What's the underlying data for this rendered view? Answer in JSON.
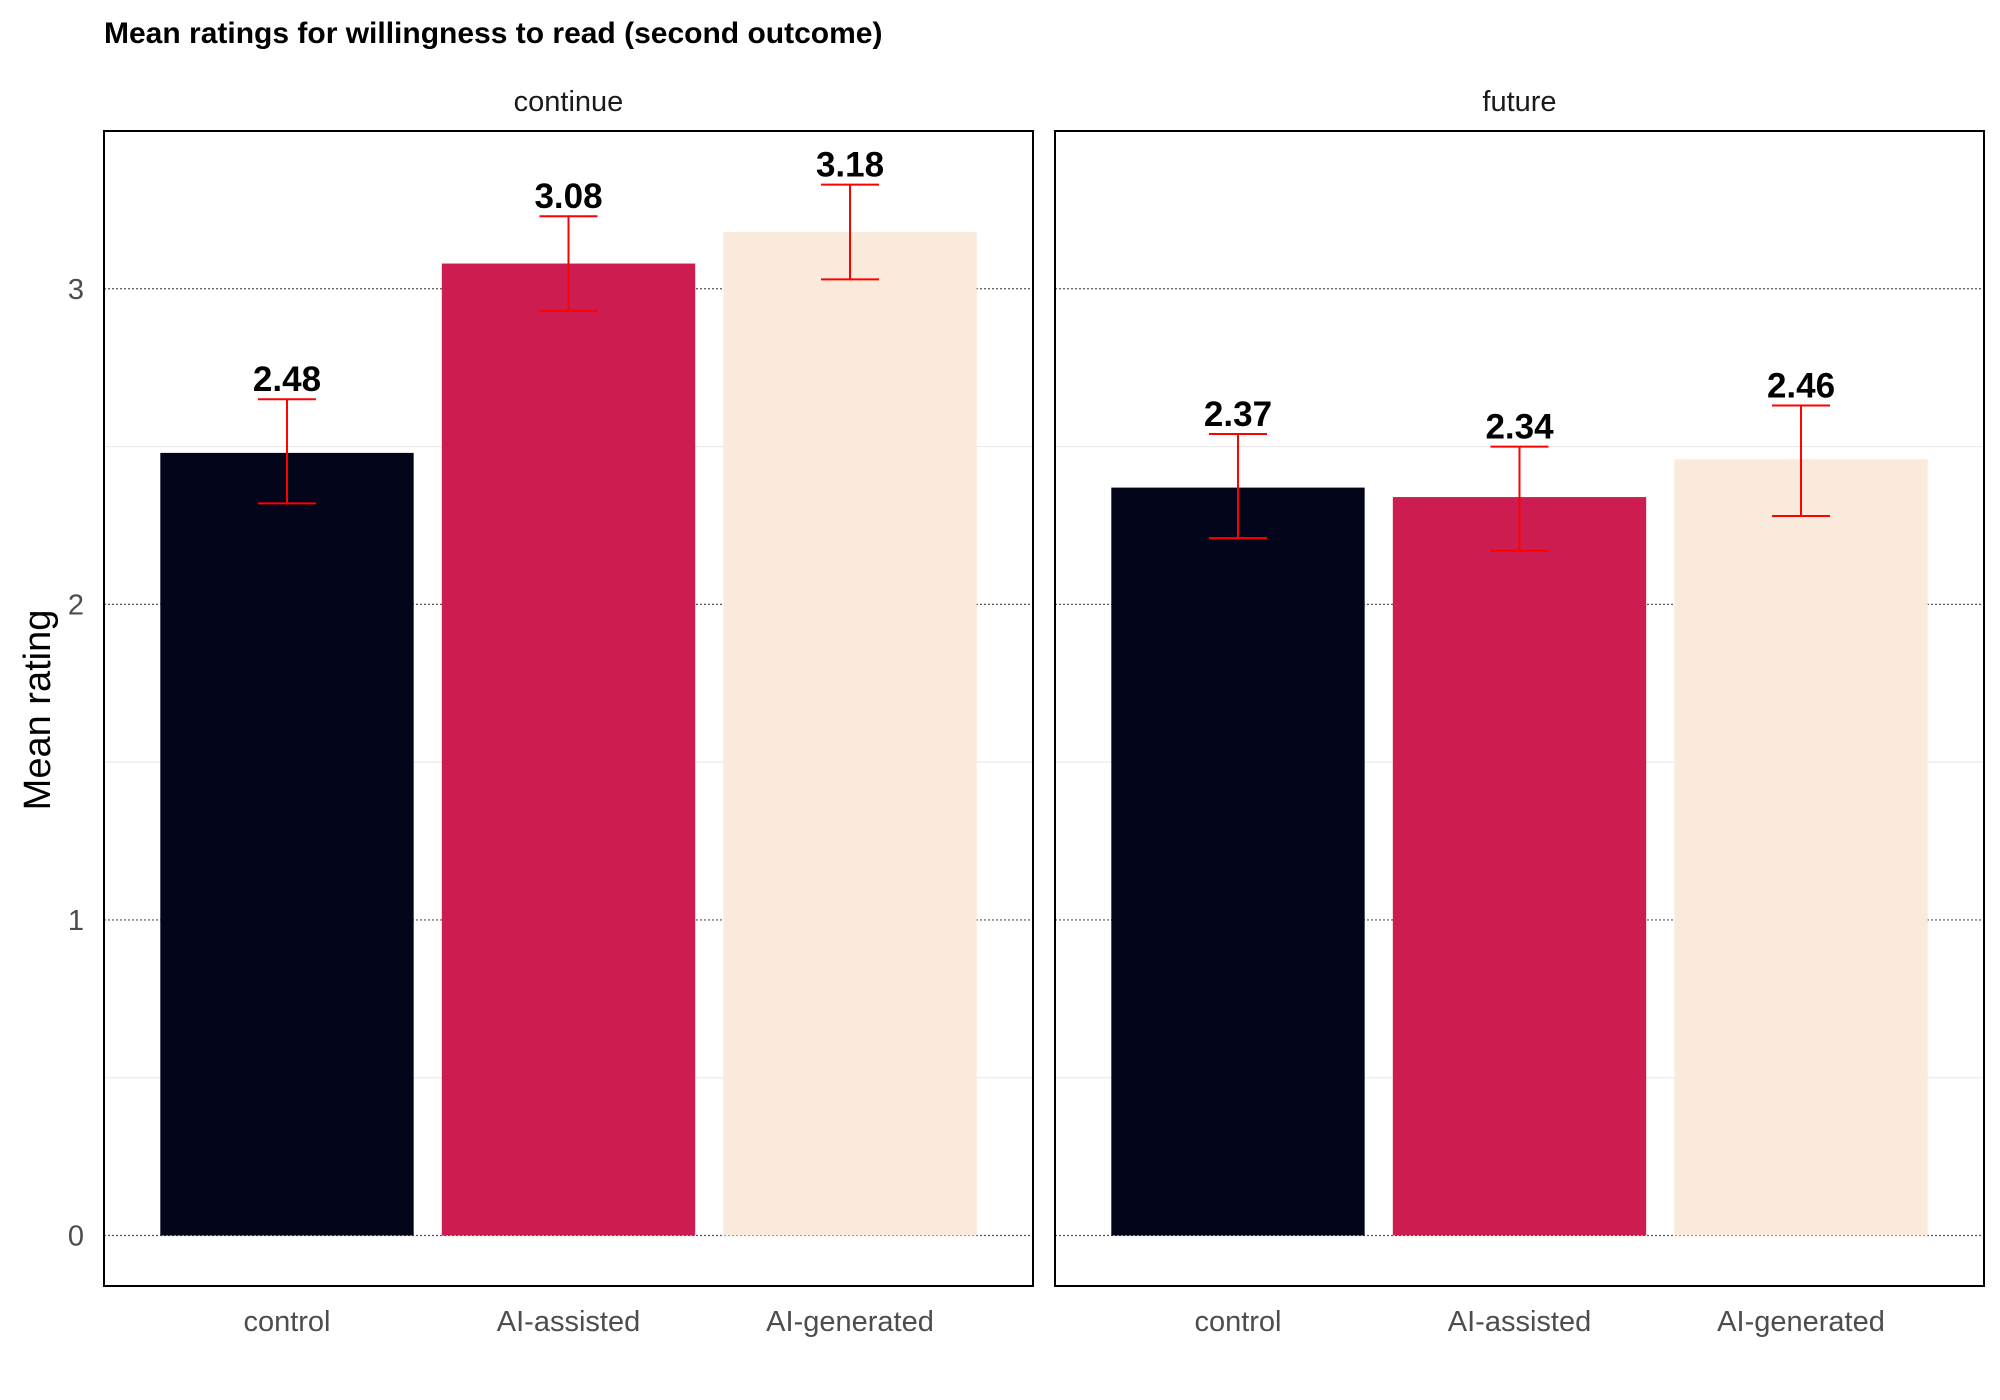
{
  "chart_data": {
    "type": "bar",
    "title": "Mean ratings for willingness to read (second outcome)",
    "xlabel": "",
    "ylabel": "Mean rating",
    "ylim": [
      -0.16,
      3.5
    ],
    "yticks": [
      0,
      1,
      2,
      3
    ],
    "grid": true,
    "legend": "none",
    "categories": [
      "control",
      "AI-assisted",
      "AI-generated"
    ],
    "colors": [
      "#03061b",
      "#cc1c50",
      "#faeadb"
    ],
    "error_bar_color": "#ff0000",
    "panels": [
      {
        "name": "continue",
        "values": [
          2.48,
          3.08,
          3.18
        ],
        "labels": [
          "2.48",
          "3.08",
          "3.18"
        ],
        "err_low": [
          2.32,
          2.93,
          3.03
        ],
        "err_high": [
          2.65,
          3.23,
          3.33
        ]
      },
      {
        "name": "future",
        "values": [
          2.37,
          2.34,
          2.46
        ],
        "labels": [
          "2.37",
          "2.34",
          "2.46"
        ],
        "err_low": [
          2.21,
          2.17,
          2.28
        ],
        "err_high": [
          2.54,
          2.5,
          2.63
        ]
      }
    ]
  }
}
